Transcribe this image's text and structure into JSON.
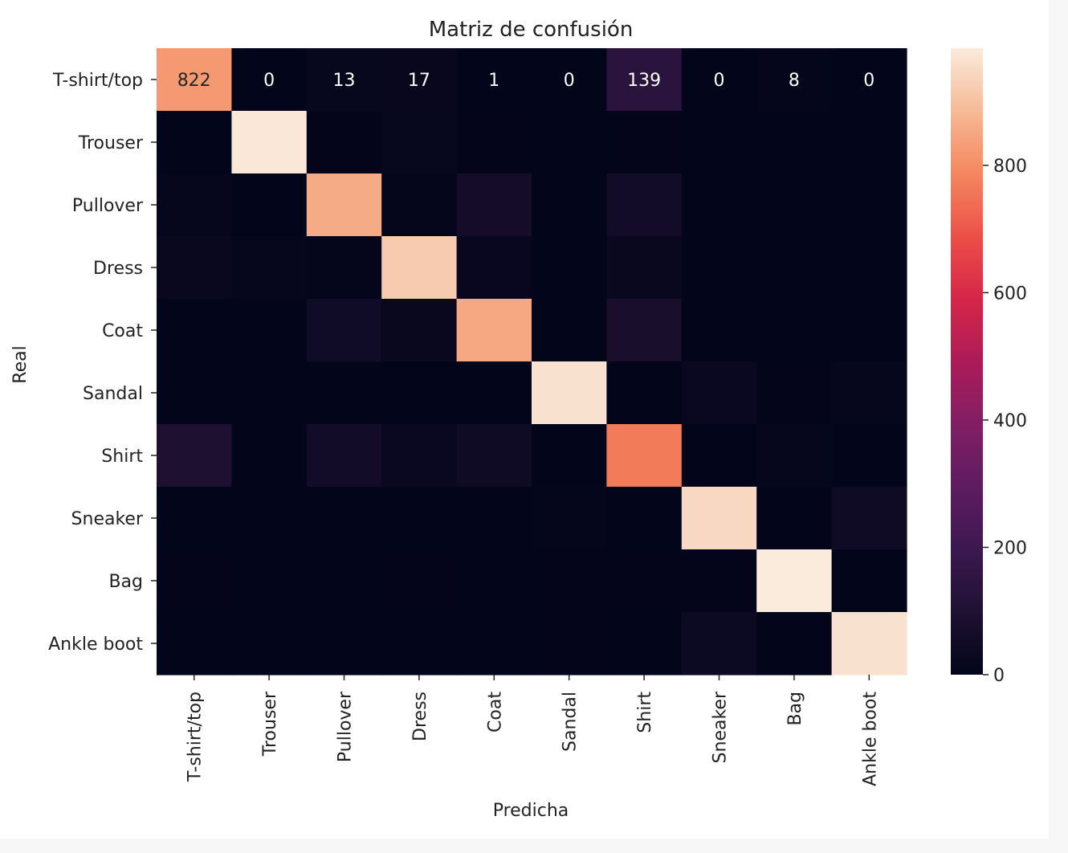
{
  "chart_data": {
    "type": "heatmap",
    "title": "Matriz de confusión",
    "xlabel": "Predicha",
    "ylabel": "Real",
    "x_categories": [
      "T-shirt/top",
      "Trouser",
      "Pullover",
      "Dress",
      "Coat",
      "Sandal",
      "Shirt",
      "Sneaker",
      "Bag",
      "Ankle boot"
    ],
    "y_categories": [
      "T-shirt/top",
      "Trouser",
      "Pullover",
      "Dress",
      "Coat",
      "Sandal",
      "Shirt",
      "Sneaker",
      "Bag",
      "Ankle boot"
    ],
    "values": [
      [
        822,
        0,
        13,
        17,
        1,
        0,
        139,
        0,
        8,
        0
      ],
      [
        1,
        975,
        3,
        15,
        3,
        0,
        3,
        0,
        0,
        0
      ],
      [
        12,
        1,
        856,
        9,
        61,
        0,
        60,
        0,
        1,
        0
      ],
      [
        22,
        10,
        7,
        920,
        20,
        0,
        21,
        0,
        0,
        0
      ],
      [
        0,
        1,
        49,
        21,
        850,
        0,
        79,
        0,
        0,
        0
      ],
      [
        0,
        0,
        0,
        0,
        0,
        964,
        0,
        23,
        2,
        11
      ],
      [
        93,
        0,
        58,
        26,
        46,
        0,
        767,
        0,
        10,
        0
      ],
      [
        0,
        0,
        0,
        0,
        0,
        8,
        0,
        946,
        0,
        46
      ],
      [
        2,
        0,
        1,
        3,
        1,
        2,
        3,
        4,
        984,
        0
      ],
      [
        0,
        0,
        0,
        0,
        0,
        4,
        0,
        32,
        0,
        964
      ]
    ],
    "annotated_rows": [
      0
    ],
    "colorbar": {
      "ticks": [
        0,
        200,
        400,
        600,
        800
      ],
      "min": 0,
      "max": 984
    }
  }
}
